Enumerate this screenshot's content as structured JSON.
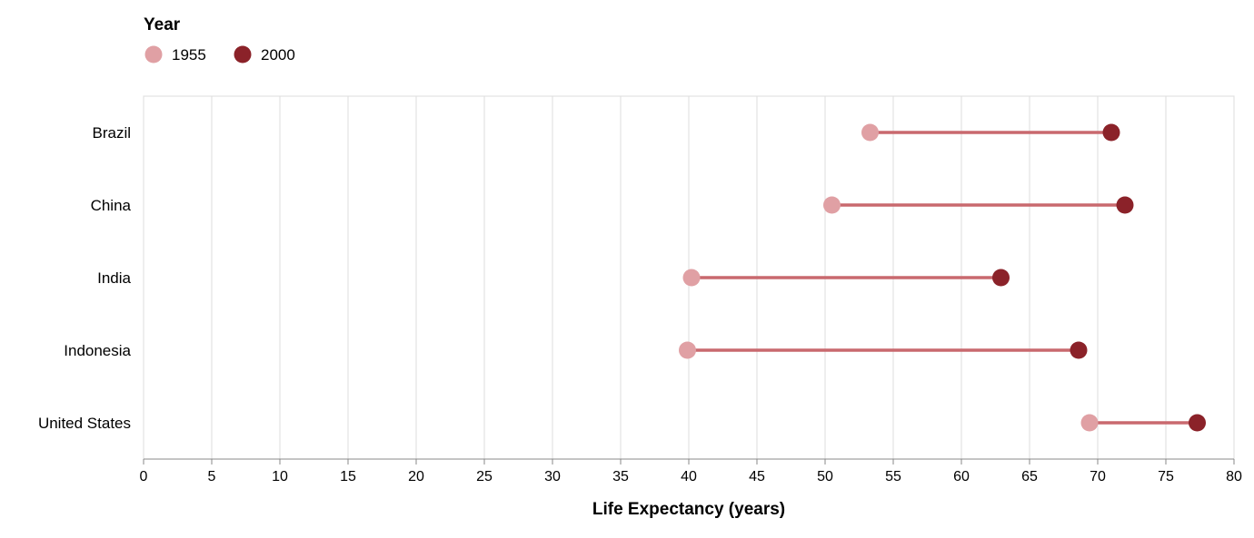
{
  "chart_data": {
    "type": "dumbbell",
    "xlabel": "Life Expectancy (years)",
    "xlim": [
      0,
      80
    ],
    "xticks": [
      0,
      5,
      10,
      15,
      20,
      25,
      30,
      35,
      40,
      45,
      50,
      55,
      60,
      65,
      70,
      75,
      80
    ],
    "grid": true,
    "legend": {
      "title": "Year",
      "placement": "top-left",
      "entries": [
        {
          "label": "1955",
          "color": "#e0a0a4"
        },
        {
          "label": "2000",
          "color": "#8b2229"
        }
      ]
    },
    "connector_color": "#c9696e",
    "categories": [
      "Brazil",
      "China",
      "India",
      "Indonesia",
      "United States"
    ],
    "series": [
      {
        "name": "1955",
        "color": "#e0a0a4",
        "values": [
          53.3,
          50.5,
          40.2,
          39.9,
          69.4
        ]
      },
      {
        "name": "2000",
        "color": "#8b2229",
        "values": [
          71.0,
          72.0,
          62.9,
          68.6,
          77.3
        ]
      }
    ]
  }
}
